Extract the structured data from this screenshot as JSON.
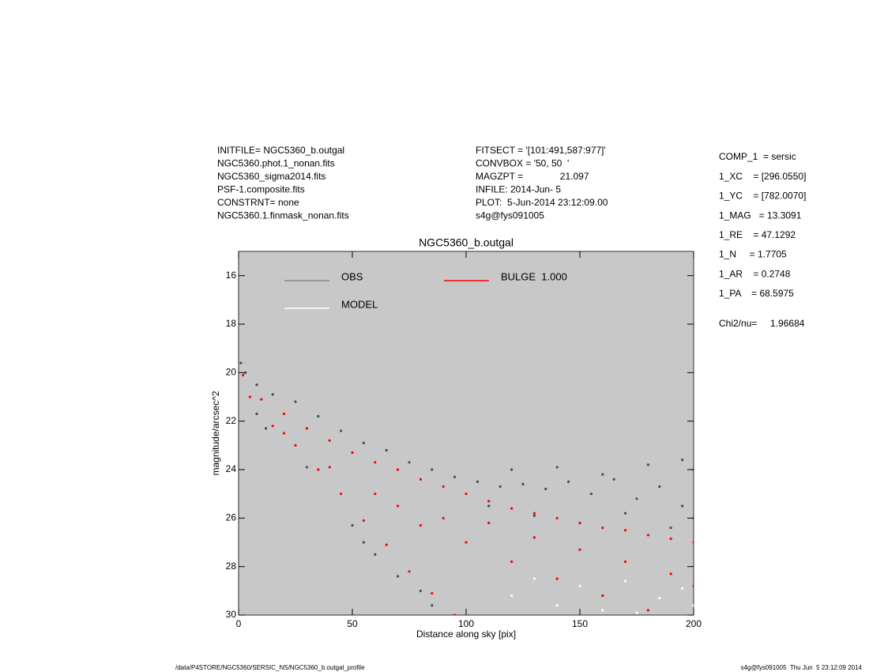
{
  "header": {
    "left": [
      "INITFILE= NGC5360_b.outgal",
      "NGC5360.phot.1_nonan.fits",
      "NGC5360_sigma2014.fits",
      "PSF-1.composite.fits",
      "CONSTRNT= none",
      "NGC5360.1.finmask_nonan.fits"
    ],
    "middle": [
      "FITSECT = '[101:491,587:977]'",
      "CONVBOX = '50, 50  '",
      "MAGZPT =              21.097",
      "INFILE: 2014-Jun- 5",
      "PLOT:  5-Jun-2014 23:12:09.00",
      "s4g@fys091005"
    ],
    "right": [
      "COMP_1  = sersic",
      "1_XC    = [296.0550]",
      "1_YC    = [782.0070]",
      "1_MAG   = 13.3091",
      "1_RE    = 47.1292",
      "1_N     = 1.7705",
      "1_AR    = 0.2748",
      "1_PA    = 68.5975"
    ],
    "chi": "Chi2/nu=     1.96684"
  },
  "footer": {
    "left": "/data/P4STORE/NGC5360/SERSIC_NS/NGC5360_b.outgal_profile",
    "right": "s4g@fys091005  Thu Jun  5 23:12:09 2014"
  },
  "chart_data": {
    "type": "scatter",
    "title": "NGC5360_b.outgal",
    "xlabel": "Distance along sky [pix]",
    "ylabel": "magnitude/arcsec^2",
    "xlim": [
      0,
      200
    ],
    "xticks": [
      0,
      50,
      100,
      150,
      200
    ],
    "ylim": [
      15,
      30
    ],
    "yticks": [
      16,
      18,
      20,
      22,
      24,
      26,
      28,
      30
    ],
    "y_inverted": true,
    "background": "#c8c8c8",
    "series": [
      {
        "name": "OBS",
        "color": "#4a4a4a",
        "x": [
          1,
          3,
          8,
          15,
          25,
          35,
          45,
          55,
          65,
          75,
          85,
          95,
          105,
          115,
          125,
          135,
          145,
          155,
          165,
          175,
          185,
          195,
          200,
          110,
          130,
          150,
          170,
          190,
          200,
          120,
          140,
          160,
          180,
          195,
          8,
          12,
          50,
          60,
          70,
          80,
          85,
          55,
          30
        ],
        "y": [
          19.6,
          20.0,
          20.5,
          20.9,
          21.2,
          21.8,
          22.4,
          22.9,
          23.2,
          23.7,
          24.0,
          24.3,
          24.5,
          24.7,
          24.6,
          24.8,
          24.5,
          25.0,
          24.4,
          25.2,
          24.7,
          25.5,
          24.0,
          25.5,
          25.9,
          26.2,
          25.8,
          26.4,
          26.0,
          24.0,
          23.9,
          24.2,
          23.8,
          23.6,
          21.7,
          22.3,
          26.3,
          27.5,
          28.4,
          29.0,
          29.6,
          27.0,
          23.9
        ]
      },
      {
        "name": "MODEL",
        "color": "#ffffff",
        "x": [
          130,
          150,
          170,
          185,
          200,
          160,
          195,
          140,
          175,
          120
        ],
        "y": [
          28.5,
          28.8,
          28.6,
          29.3,
          29.6,
          29.8,
          28.9,
          29.6,
          29.9,
          29.2
        ]
      },
      {
        "name": "BULGE  1.000",
        "color": "#ff0000",
        "x": [
          2,
          10,
          20,
          30,
          40,
          50,
          60,
          70,
          80,
          90,
          100,
          110,
          120,
          130,
          140,
          150,
          160,
          170,
          180,
          190,
          200,
          5,
          15,
          25,
          35,
          45,
          55,
          65,
          75,
          85,
          95,
          20,
          40,
          60,
          80,
          100,
          120,
          140,
          160,
          180,
          110,
          130,
          150,
          170,
          190,
          200,
          70,
          90
        ],
        "y": [
          20.1,
          21.1,
          21.7,
          22.3,
          22.8,
          23.3,
          23.7,
          24.0,
          24.4,
          24.7,
          25.0,
          25.3,
          25.6,
          25.8,
          26.0,
          26.2,
          26.4,
          26.5,
          26.7,
          26.85,
          27.0,
          21.0,
          22.2,
          23.0,
          24.0,
          25.0,
          26.1,
          27.1,
          28.2,
          29.1,
          30.0,
          22.5,
          23.9,
          25.0,
          26.3,
          27.0,
          27.8,
          28.5,
          29.2,
          29.8,
          26.2,
          26.8,
          27.3,
          27.8,
          28.3,
          28.8,
          25.5,
          26.0
        ]
      }
    ]
  }
}
